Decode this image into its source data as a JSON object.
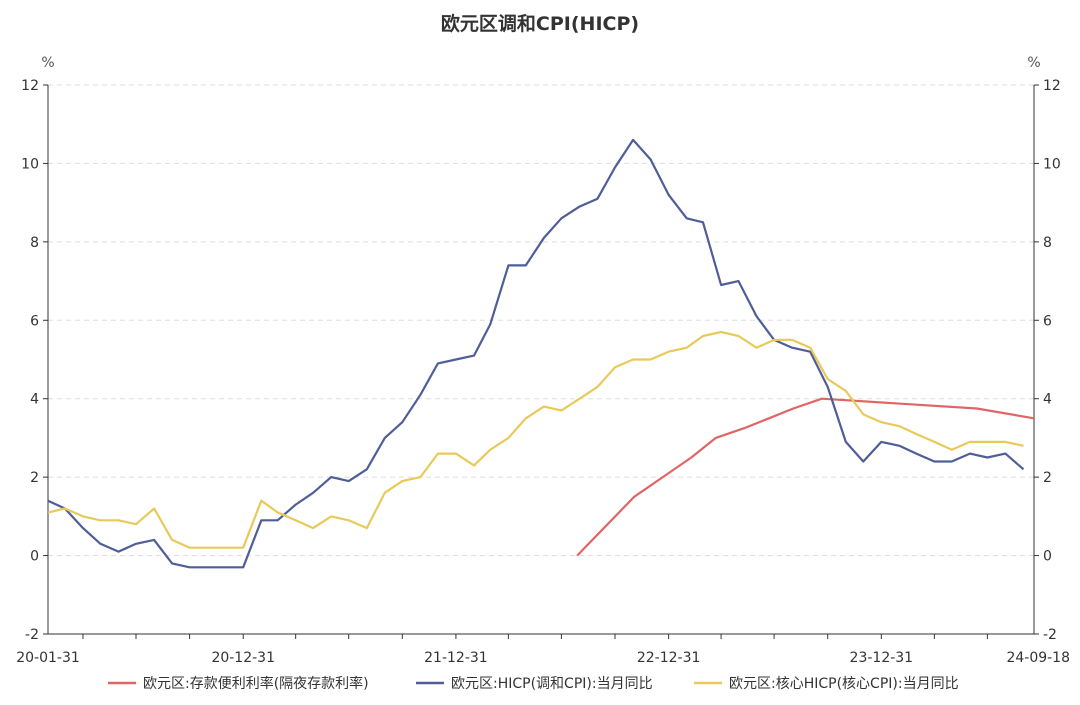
{
  "chart_data": {
    "type": "line",
    "title": "欧元区调和CPI(HICP)",
    "y_unit_left": "%",
    "y_unit_right": "%",
    "ylim": [
      -2,
      12
    ],
    "y_ticks": [
      -2,
      0,
      2,
      4,
      6,
      8,
      10,
      12
    ],
    "x_tick_labels": [
      "20-01-31",
      "20-12-31",
      "21-12-31",
      "22-12-31",
      "23-12-31",
      "24-09-18"
    ],
    "x_range": [
      "2020-01-31",
      "2024-09-18"
    ],
    "grid": "horizontal dashed",
    "legend_position": "bottom",
    "series": [
      {
        "name": "欧元区:存款便利利率(隔夜存款利率)",
        "color": "#e06666",
        "x": [
          "2022-07-27",
          "2022-09-14",
          "2022-11-02",
          "2022-12-21",
          "2023-02-08",
          "2023-03-22",
          "2023-05-10",
          "2023-06-21",
          "2023-08-02",
          "2023-09-20",
          "2024-06-12",
          "2024-09-18"
        ],
        "y": [
          0.0,
          0.75,
          1.5,
          2.0,
          2.5,
          3.0,
          3.25,
          3.5,
          3.75,
          4.0,
          3.75,
          3.5
        ]
      },
      {
        "name": "欧元区:HICP(调和CPI):当月同比",
        "color": "#4f5d99",
        "x": [
          "2020-01-31",
          "2020-02-29",
          "2020-03-31",
          "2020-04-30",
          "2020-05-31",
          "2020-06-30",
          "2020-07-31",
          "2020-08-31",
          "2020-09-30",
          "2020-10-31",
          "2020-11-30",
          "2020-12-31",
          "2021-01-31",
          "2021-02-28",
          "2021-03-31",
          "2021-04-30",
          "2021-05-31",
          "2021-06-30",
          "2021-07-31",
          "2021-08-31",
          "2021-09-30",
          "2021-10-31",
          "2021-11-30",
          "2021-12-31",
          "2022-01-31",
          "2022-02-28",
          "2022-03-31",
          "2022-04-30",
          "2022-05-31",
          "2022-06-30",
          "2022-07-31",
          "2022-08-31",
          "2022-09-30",
          "2022-10-31",
          "2022-11-30",
          "2022-12-31",
          "2023-01-31",
          "2023-02-28",
          "2023-03-31",
          "2023-04-30",
          "2023-05-31",
          "2023-06-30",
          "2023-07-31",
          "2023-08-31",
          "2023-09-30",
          "2023-10-31",
          "2023-11-30",
          "2023-12-31",
          "2024-01-31",
          "2024-02-29",
          "2024-03-31",
          "2024-04-30",
          "2024-05-31",
          "2024-06-30",
          "2024-07-31",
          "2024-08-31"
        ],
        "y": [
          1.4,
          1.2,
          0.7,
          0.3,
          0.1,
          0.3,
          0.4,
          -0.2,
          -0.3,
          -0.3,
          -0.3,
          -0.3,
          0.9,
          0.9,
          1.3,
          1.6,
          2.0,
          1.9,
          2.2,
          3.0,
          3.4,
          4.1,
          4.9,
          5.0,
          5.1,
          5.9,
          7.4,
          7.4,
          8.1,
          8.6,
          8.9,
          9.1,
          9.9,
          10.6,
          10.1,
          9.2,
          8.6,
          8.5,
          6.9,
          7.0,
          6.1,
          5.5,
          5.3,
          5.2,
          4.3,
          2.9,
          2.4,
          2.9,
          2.8,
          2.6,
          2.4,
          2.4,
          2.6,
          2.5,
          2.6,
          2.2
        ]
      },
      {
        "name": "欧元区:核心HICP(核心CPI):当月同比",
        "color": "#e8c95a",
        "x": [
          "2020-01-31",
          "2020-02-29",
          "2020-03-31",
          "2020-04-30",
          "2020-05-31",
          "2020-06-30",
          "2020-07-31",
          "2020-08-31",
          "2020-09-30",
          "2020-10-31",
          "2020-11-30",
          "2020-12-31",
          "2021-01-31",
          "2021-02-28",
          "2021-03-31",
          "2021-04-30",
          "2021-05-31",
          "2021-06-30",
          "2021-07-31",
          "2021-08-31",
          "2021-09-30",
          "2021-10-31",
          "2021-11-30",
          "2021-12-31",
          "2022-01-31",
          "2022-02-28",
          "2022-03-31",
          "2022-04-30",
          "2022-05-31",
          "2022-06-30",
          "2022-07-31",
          "2022-08-31",
          "2022-09-30",
          "2022-10-31",
          "2022-11-30",
          "2022-12-31",
          "2023-01-31",
          "2023-02-28",
          "2023-03-31",
          "2023-04-30",
          "2023-05-31",
          "2023-06-30",
          "2023-07-31",
          "2023-08-31",
          "2023-09-30",
          "2023-10-31",
          "2023-11-30",
          "2023-12-31",
          "2024-01-31",
          "2024-02-29",
          "2024-03-31",
          "2024-04-30",
          "2024-05-31",
          "2024-06-30",
          "2024-07-31",
          "2024-08-31"
        ],
        "y": [
          1.1,
          1.2,
          1.0,
          0.9,
          0.9,
          0.8,
          1.2,
          0.4,
          0.2,
          0.2,
          0.2,
          0.2,
          1.4,
          1.1,
          0.9,
          0.7,
          1.0,
          0.9,
          0.7,
          1.6,
          1.9,
          2.0,
          2.6,
          2.6,
          2.3,
          2.7,
          3.0,
          3.5,
          3.8,
          3.7,
          4.0,
          4.3,
          4.8,
          5.0,
          5.0,
          5.2,
          5.3,
          5.6,
          5.7,
          5.6,
          5.3,
          5.5,
          5.5,
          5.3,
          4.5,
          4.2,
          3.6,
          3.4,
          3.3,
          3.1,
          2.9,
          2.7,
          2.9,
          2.9,
          2.9,
          2.8
        ]
      }
    ]
  }
}
